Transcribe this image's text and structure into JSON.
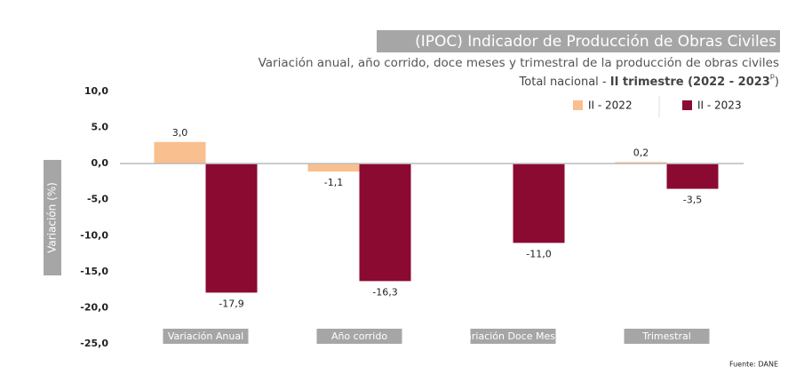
{
  "chart_data": {
    "type": "bar",
    "title": "(IPOC) Indicador de Producción de Obras Civiles",
    "subtitle": "Variación anual, año corrido, doce meses y trimestral de la producción de obras civiles",
    "subtitle_2": [
      "Total nacional - ",
      "II trimestre (2022 - 2023",
      "p",
      ")"
    ],
    "ylabel": "Variación  (%)",
    "source": "Fuente: DANE",
    "categories": [
      "Variación Anual",
      "Año corrido",
      "Variación Doce Meses",
      "Trimestral"
    ],
    "series": [
      {
        "name": "II - 2022",
        "color": "#f9bf8f",
        "values": [
          3.0,
          -1.1,
          null,
          0.2
        ],
        "value_labels": [
          "3,0",
          "-1,1",
          null,
          "0,2"
        ]
      },
      {
        "name": "II - 2023",
        "color": "#8b0a32",
        "values": [
          -17.9,
          -16.3,
          -11.0,
          -3.5
        ],
        "value_labels": [
          "-17,9",
          "-16,3",
          "-11,0",
          "-3,5"
        ]
      }
    ],
    "ylim": [
      -25,
      10
    ],
    "yticks": [
      {
        "value": 10,
        "label": "10,0"
      },
      {
        "value": 5,
        "label": "5.0"
      },
      {
        "value": 0,
        "label": "0,0"
      },
      {
        "value": -5,
        "label": "-5,0"
      },
      {
        "value": -10,
        "label": "-10,0"
      },
      {
        "value": -15,
        "label": "-15,0"
      },
      {
        "value": -20,
        "label": "-20,0"
      },
      {
        "value": -25,
        "label": "-25,0"
      }
    ],
    "grid": false,
    "legend": "upper right"
  }
}
